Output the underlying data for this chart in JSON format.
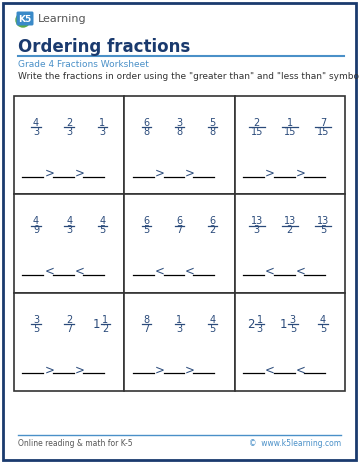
{
  "title": "Ordering fractions",
  "subtitle": "Grade 4 Fractions Worksheet",
  "instruction": "Write the fractions in order using the \"greater than\" and \"less than\" symbols as shown.",
  "footer_left": "Online reading & math for K-5",
  "footer_right": "©  www.k5learning.com",
  "border_color": "#1a3a6e",
  "box_border_color": "#333333",
  "title_color": "#1a3a6e",
  "subtitle_color": "#4a90c8",
  "instruction_color": "#333333",
  "fraction_color": "#2a4a7a",
  "symbol_color": "#2a4a7a",
  "footer_color": "#555555",
  "footer_link_color": "#4a90c8",
  "logo_bg": "#4a90c8",
  "cells": [
    {
      "fractions": [
        [
          "4",
          "3"
        ],
        [
          "2",
          "3"
        ],
        [
          "1",
          "3"
        ]
      ],
      "symbol": ">",
      "row": 0,
      "col": 0
    },
    {
      "fractions": [
        [
          "6",
          "8"
        ],
        [
          "3",
          "8"
        ],
        [
          "5",
          "8"
        ]
      ],
      "symbol": ">",
      "row": 0,
      "col": 1
    },
    {
      "fractions": [
        [
          "2",
          "15"
        ],
        [
          "1",
          "15"
        ],
        [
          "7",
          "15"
        ]
      ],
      "symbol": ">",
      "row": 0,
      "col": 2
    },
    {
      "fractions": [
        [
          "4",
          "9"
        ],
        [
          "4",
          "3"
        ],
        [
          "4",
          "5"
        ]
      ],
      "symbol": "<",
      "row": 1,
      "col": 0
    },
    {
      "fractions": [
        [
          "6",
          "5"
        ],
        [
          "6",
          "7"
        ],
        [
          "6",
          "2"
        ]
      ],
      "symbol": "<",
      "row": 1,
      "col": 1
    },
    {
      "fractions": [
        [
          "13",
          "3"
        ],
        [
          "13",
          "2"
        ],
        [
          "13",
          "5"
        ]
      ],
      "symbol": "<",
      "row": 1,
      "col": 2
    },
    {
      "fractions": [
        [
          "3",
          "5"
        ],
        [
          "2",
          "7"
        ],
        [
          "1 1",
          "2"
        ]
      ],
      "symbol": ">",
      "row": 2,
      "col": 0
    },
    {
      "fractions": [
        [
          "8",
          "7"
        ],
        [
          "1",
          "3"
        ],
        [
          "4",
          "5"
        ]
      ],
      "symbol": ">",
      "row": 2,
      "col": 1
    },
    {
      "fractions": [
        [
          "2 1",
          "3"
        ],
        [
          "1 3",
          "5"
        ],
        [
          "4",
          "5"
        ]
      ],
      "symbol": "<",
      "row": 2,
      "col": 2
    }
  ]
}
